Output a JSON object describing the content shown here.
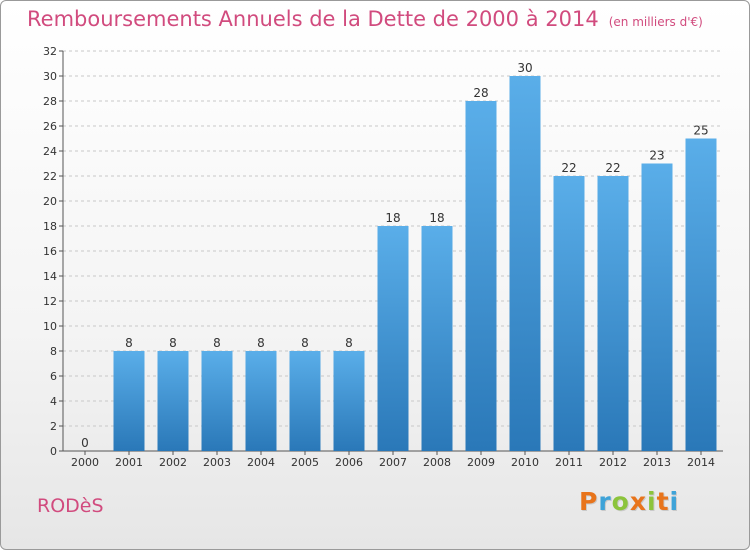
{
  "header": {
    "title": "Remboursements Annuels de la Dette de 2000 à 2014",
    "unit": "(en milliers d'€)"
  },
  "footer": {
    "commune": "RODèS",
    "logo_letters": [
      "P",
      "r",
      "o",
      "x",
      "i",
      "t",
      "i"
    ],
    "logo_colors": [
      "#e8741b",
      "#3ea3d8",
      "#8cc43c",
      "#e8741b",
      "#8cc43c",
      "#e8741b",
      "#3ea3d8"
    ]
  },
  "chart_data": {
    "type": "bar",
    "title": "Remboursements Annuels de la Dette de 2000 à 2014",
    "xlabel": "",
    "ylabel": "",
    "categories": [
      "2000",
      "2001",
      "2002",
      "2003",
      "2004",
      "2005",
      "2006",
      "2007",
      "2008",
      "2009",
      "2010",
      "2011",
      "2012",
      "2013",
      "2014"
    ],
    "values": [
      0,
      8,
      8,
      8,
      8,
      8,
      8,
      18,
      18,
      28,
      30,
      22,
      22,
      23,
      25
    ],
    "ylim": [
      0,
      32
    ],
    "yticks": [
      0,
      2,
      4,
      6,
      8,
      10,
      12,
      14,
      16,
      18,
      20,
      22,
      24,
      26,
      28,
      30,
      32
    ],
    "grid": true,
    "bar_color_top": "#5aaee9",
    "bar_color_bottom": "#2a78b8",
    "grid_color": "#c8c8c8"
  }
}
